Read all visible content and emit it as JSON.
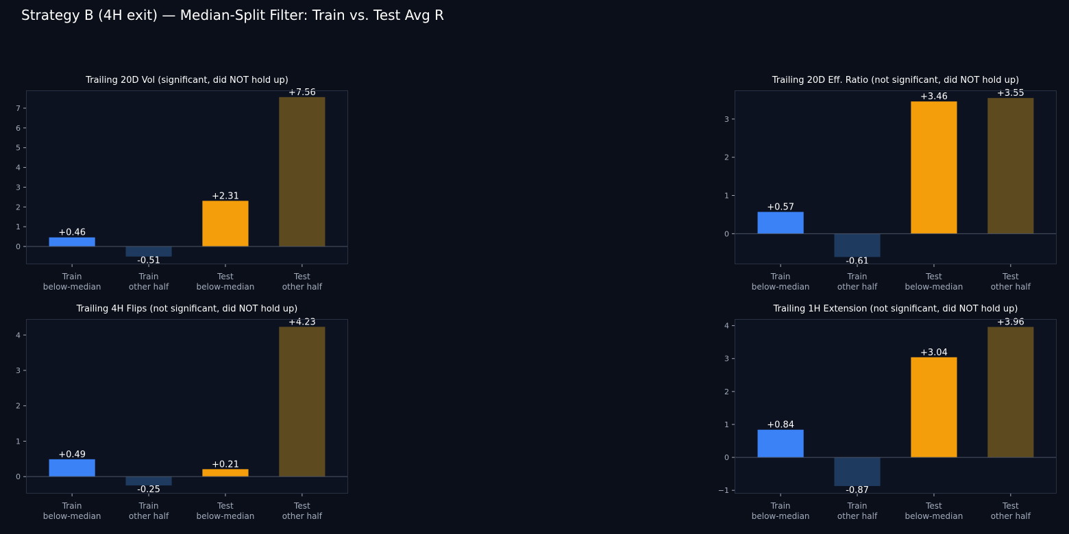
{
  "title": "Strategy B (4H exit) — Median-Split Filter: Train vs. Test Avg R",
  "colors": {
    "background": "#0b0f19",
    "axes_face": "#0d1220",
    "spine": "#2a3142",
    "train_below": "#3b82f6",
    "train_other": "#1e3a5f",
    "test_below": "#f59e0b",
    "test_other": "#5e4a1f"
  },
  "chart_data": [
    {
      "type": "bar",
      "title": "Trailing 20D Vol (significant, did NOT hold up)",
      "categories": [
        "Train\nbelow-median",
        "Train\nother half",
        "Test\nbelow-median",
        "Test\nother half"
      ],
      "values": [
        0.46,
        -0.51,
        2.31,
        7.56
      ],
      "value_labels": [
        "+0.46",
        "-0.51",
        "+2.31",
        "+7.56"
      ],
      "ylim": [
        -0.9,
        7.9
      ],
      "yticks": [
        0,
        1,
        2,
        3,
        4,
        5,
        6,
        7
      ],
      "ytick_labels": [
        "0",
        "1",
        "2",
        "3",
        "4",
        "5",
        "6",
        "7"
      ]
    },
    {
      "type": "bar",
      "title": "Trailing 20D Eff. Ratio (not significant, did NOT hold up)",
      "categories": [
        "Train\nbelow-median",
        "Train\nother half",
        "Test\nbelow-median",
        "Test\nother half"
      ],
      "values": [
        0.57,
        -0.61,
        3.46,
        3.55
      ],
      "value_labels": [
        "+0.57",
        "-0.61",
        "+3.46",
        "+3.55"
      ],
      "ylim": [
        -0.8,
        3.75
      ],
      "yticks": [
        0,
        1,
        2,
        3
      ],
      "ytick_labels": [
        "0",
        "1",
        "2",
        "3"
      ]
    },
    {
      "type": "bar",
      "title": "Trailing 4H Flips (not significant, did NOT hold up)",
      "categories": [
        "Train\nbelow-median",
        "Train\nother half",
        "Test\nbelow-median",
        "Test\nother half"
      ],
      "values": [
        0.49,
        -0.25,
        0.21,
        4.23
      ],
      "value_labels": [
        "+0.49",
        "-0.25",
        "+0.21",
        "+4.23"
      ],
      "ylim": [
        -0.48,
        4.45
      ],
      "yticks": [
        0,
        1,
        2,
        3,
        4
      ],
      "ytick_labels": [
        "0",
        "1",
        "2",
        "3",
        "4"
      ]
    },
    {
      "type": "bar",
      "title": "Trailing 1H Extension (not significant, did NOT hold up)",
      "categories": [
        "Train\nbelow-median",
        "Train\nother half",
        "Test\nbelow-median",
        "Test\nother half"
      ],
      "values": [
        0.84,
        -0.87,
        3.04,
        3.96
      ],
      "value_labels": [
        "+0.84",
        "-0.87",
        "+3.04",
        "+3.96"
      ],
      "ylim": [
        -1.1,
        4.2
      ],
      "yticks": [
        -1,
        0,
        1,
        2,
        3,
        4
      ],
      "ytick_labels": [
        "−1",
        "0",
        "1",
        "2",
        "3",
        "4"
      ]
    }
  ]
}
